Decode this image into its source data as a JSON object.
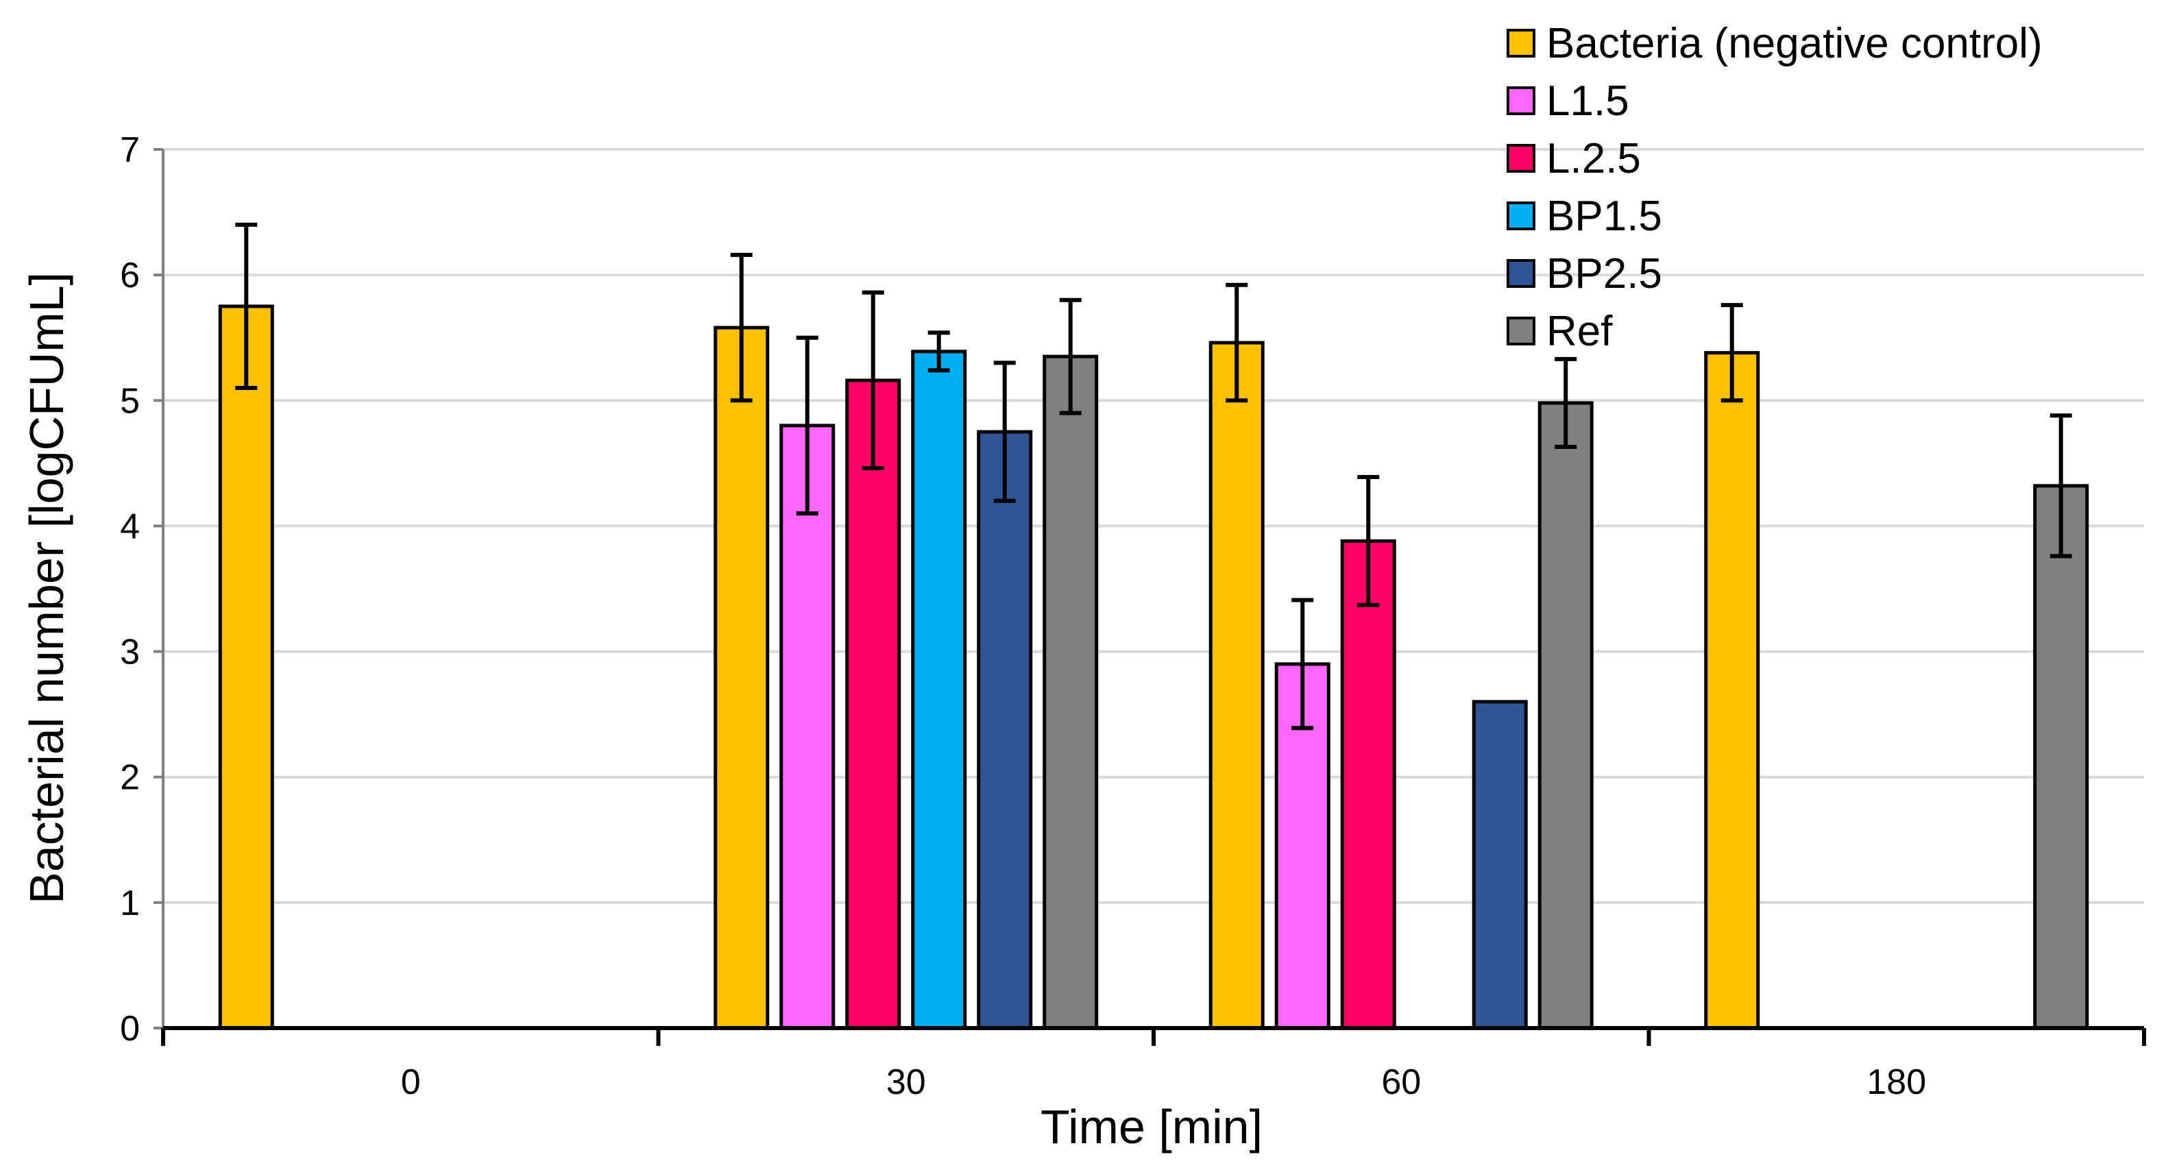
{
  "chart_data": {
    "type": "bar",
    "title": "",
    "xlabel": "Time [min]",
    "ylabel": "Bacterial number  [logCFUmL]",
    "categories": [
      "0",
      "30",
      "60",
      "180"
    ],
    "ylim": [
      0,
      7
    ],
    "yticks": [
      0,
      1,
      2,
      3,
      4,
      5,
      6,
      7
    ],
    "grid": true,
    "legend_position": "top-right",
    "series": [
      {
        "name": "Bacteria (negative control)",
        "color": "#FFC000",
        "values": [
          5.75,
          5.58,
          5.46,
          5.38
        ],
        "errors": [
          0.65,
          0.58,
          0.46,
          0.38
        ]
      },
      {
        "name": "L1.5",
        "color": "#FF66FF",
        "values": [
          null,
          4.8,
          2.9,
          null
        ],
        "errors": [
          null,
          0.7,
          0.51,
          null
        ]
      },
      {
        "name": "L.2.5",
        "color": "#FF0066",
        "values": [
          null,
          5.16,
          3.88,
          null
        ],
        "errors": [
          null,
          0.7,
          0.51,
          null
        ]
      },
      {
        "name": "BP1.5",
        "color": "#00B0F0",
        "values": [
          null,
          5.39,
          null,
          null
        ],
        "errors": [
          null,
          0.15,
          null,
          null
        ]
      },
      {
        "name": "BP2.5",
        "color": "#2F5597",
        "values": [
          null,
          4.75,
          2.6,
          null
        ],
        "errors": [
          null,
          0.55,
          0,
          null
        ]
      },
      {
        "name": "Ref",
        "color": "#808080",
        "values": [
          null,
          5.35,
          4.98,
          4.32
        ],
        "errors": [
          null,
          0.45,
          0.35,
          0.56
        ]
      }
    ]
  }
}
